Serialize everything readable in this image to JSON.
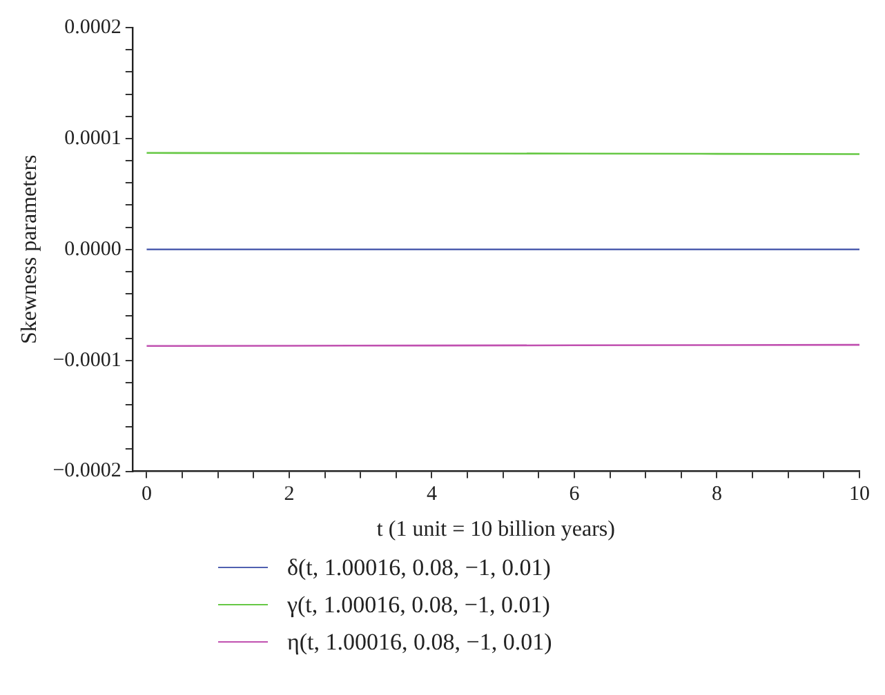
{
  "chart_data": {
    "type": "line",
    "xlabel": "t (1 unit = 10 billion years)",
    "ylabel": "Skewness parameters",
    "x": [
      0,
      2,
      4,
      6,
      8,
      10
    ],
    "series": [
      {
        "name": "δ(t, 1.00016, 0.08, −1, 0.01)",
        "color": "#5060b0",
        "values": [
          0,
          0,
          0,
          0,
          0,
          0
        ]
      },
      {
        "name": "γ(t, 1.00016, 0.08, −1, 0.01)",
        "color": "#66c844",
        "values": [
          8.7e-05,
          8.68e-05,
          8.66e-05,
          8.64e-05,
          8.62e-05,
          8.6e-05
        ]
      },
      {
        "name": "η(t, 1.00016, 0.08, −1, 0.01)",
        "color": "#c050b0",
        "values": [
          -8.7e-05,
          -8.68e-05,
          -8.66e-05,
          -8.64e-05,
          -8.62e-05,
          -8.6e-05
        ]
      }
    ],
    "xlim": [
      -0.2,
      10
    ],
    "xticks": [
      0,
      {
        "value": 0.5,
        "label": null
      },
      {
        "value": 1,
        "label": null
      },
      {
        "value": 1.5,
        "label": null
      },
      2,
      {
        "value": 2.5,
        "label": null
      },
      {
        "value": 3,
        "label": null
      },
      {
        "value": 3.5,
        "label": null
      },
      4,
      {
        "value": 4.5,
        "label": null
      },
      {
        "value": 5,
        "label": null
      },
      {
        "value": 5.5,
        "label": null
      },
      6,
      {
        "value": 6.5,
        "label": null
      },
      {
        "value": 7,
        "label": null
      },
      {
        "value": 7.5,
        "label": null
      },
      8,
      {
        "value": 8.5,
        "label": null
      },
      {
        "value": 9,
        "label": null
      },
      {
        "value": 9.5,
        "label": null
      },
      10
    ],
    "ylim": [
      -0.0002,
      0.0002
    ],
    "yticks": [
      {
        "value": -0.0002,
        "label": "−0.0002"
      },
      {
        "value": -0.00018,
        "label": null
      },
      {
        "value": -0.00016,
        "label": null
      },
      {
        "value": -0.00014,
        "label": null
      },
      {
        "value": -0.00012,
        "label": null
      },
      {
        "value": -0.0001,
        "label": "−0.0001"
      },
      {
        "value": -8e-05,
        "label": null
      },
      {
        "value": -6e-05,
        "label": null
      },
      {
        "value": -4e-05,
        "label": null
      },
      {
        "value": -2e-05,
        "label": null
      },
      {
        "value": 0,
        "label": "0.0000"
      },
      {
        "value": 2e-05,
        "label": null
      },
      {
        "value": 4e-05,
        "label": null
      },
      {
        "value": 6e-05,
        "label": null
      },
      {
        "value": 8e-05,
        "label": null
      },
      {
        "value": 0.0001,
        "label": "0.0001"
      },
      {
        "value": 0.00012,
        "label": null
      },
      {
        "value": 0.00014,
        "label": null
      },
      {
        "value": 0.00016,
        "label": null
      },
      {
        "value": 0.00018,
        "label": null
      },
      {
        "value": 0.0002,
        "label": "0.0002"
      }
    ],
    "grid": false,
    "legend": "bottom left",
    "marker": "none",
    "line_style": "solid"
  }
}
